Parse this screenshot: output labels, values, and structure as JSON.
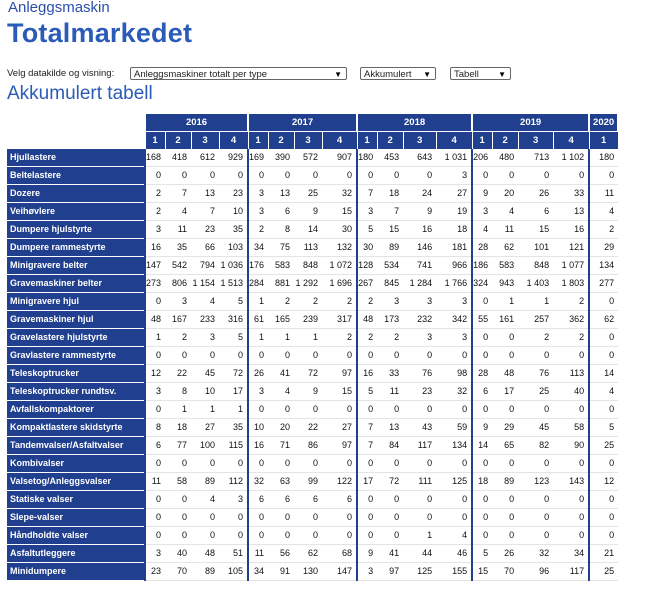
{
  "header": {
    "site_name": "Anleggsmaskin",
    "title": "Totalmarkedet"
  },
  "controls": {
    "label": "Velg datakilde og visning:",
    "source_value": "Anleggsmaskiner totalt per type",
    "mode_value": "Akkumulert",
    "view_value": "Tabell"
  },
  "section_title": "Akkumulert tabell",
  "table": {
    "years": [
      {
        "year": "2016",
        "quarters": [
          "1",
          "2",
          "3",
          "4"
        ]
      },
      {
        "year": "2017",
        "quarters": [
          "1",
          "2",
          "3",
          "4"
        ]
      },
      {
        "year": "2018",
        "quarters": [
          "1",
          "2",
          "3",
          "4"
        ]
      },
      {
        "year": "2019",
        "quarters": [
          "1",
          "2",
          "3",
          "4"
        ]
      },
      {
        "year": "2020",
        "quarters": [
          "1"
        ]
      }
    ],
    "rows": [
      {
        "label": "Hjullastere",
        "values": [
          "168",
          "418",
          "612",
          "929",
          "169",
          "390",
          "572",
          "907",
          "180",
          "453",
          "643",
          "1 031",
          "206",
          "480",
          "713",
          "1 102",
          "180"
        ]
      },
      {
        "label": "Beltelastere",
        "values": [
          "0",
          "0",
          "0",
          "0",
          "0",
          "0",
          "0",
          "0",
          "0",
          "0",
          "0",
          "3",
          "0",
          "0",
          "0",
          "0",
          "0"
        ]
      },
      {
        "label": "Dozere",
        "values": [
          "2",
          "7",
          "13",
          "23",
          "3",
          "13",
          "25",
          "32",
          "7",
          "18",
          "24",
          "27",
          "9",
          "20",
          "26",
          "33",
          "11"
        ]
      },
      {
        "label": "Veihøvlere",
        "values": [
          "2",
          "4",
          "7",
          "10",
          "3",
          "6",
          "9",
          "15",
          "3",
          "7",
          "9",
          "19",
          "3",
          "4",
          "6",
          "13",
          "4"
        ]
      },
      {
        "label": "Dumpere hjulstyrte",
        "values": [
          "3",
          "11",
          "23",
          "35",
          "2",
          "8",
          "14",
          "30",
          "5",
          "15",
          "16",
          "18",
          "4",
          "11",
          "15",
          "16",
          "2"
        ]
      },
      {
        "label": "Dumpere rammestyrte",
        "values": [
          "16",
          "35",
          "66",
          "103",
          "34",
          "75",
          "113",
          "132",
          "30",
          "89",
          "146",
          "181",
          "28",
          "62",
          "101",
          "121",
          "29"
        ]
      },
      {
        "label": "Minigravere belter",
        "values": [
          "147",
          "542",
          "794",
          "1 036",
          "176",
          "583",
          "848",
          "1 072",
          "128",
          "534",
          "741",
          "966",
          "186",
          "583",
          "848",
          "1 077",
          "134"
        ]
      },
      {
        "label": "Gravemaskiner belter",
        "values": [
          "273",
          "806",
          "1 154",
          "1 513",
          "284",
          "881",
          "1 292",
          "1 696",
          "267",
          "845",
          "1 284",
          "1 766",
          "324",
          "943",
          "1 403",
          "1 803",
          "277"
        ]
      },
      {
        "label": "Minigravere hjul",
        "values": [
          "0",
          "3",
          "4",
          "5",
          "1",
          "2",
          "2",
          "2",
          "2",
          "3",
          "3",
          "3",
          "0",
          "1",
          "1",
          "2",
          "0"
        ]
      },
      {
        "label": "Gravemaskiner hjul",
        "values": [
          "48",
          "167",
          "233",
          "316",
          "61",
          "165",
          "239",
          "317",
          "48",
          "173",
          "232",
          "342",
          "55",
          "161",
          "257",
          "362",
          "62"
        ]
      },
      {
        "label": "Gravelastere hjulstyrte",
        "values": [
          "1",
          "2",
          "3",
          "5",
          "1",
          "1",
          "1",
          "2",
          "2",
          "2",
          "3",
          "3",
          "0",
          "0",
          "2",
          "2",
          "0"
        ]
      },
      {
        "label": "Gravlastere rammestyrte",
        "values": [
          "0",
          "0",
          "0",
          "0",
          "0",
          "0",
          "0",
          "0",
          "0",
          "0",
          "0",
          "0",
          "0",
          "0",
          "0",
          "0",
          "0"
        ]
      },
      {
        "label": "Teleskoptrucker",
        "values": [
          "12",
          "22",
          "45",
          "72",
          "26",
          "41",
          "72",
          "97",
          "16",
          "33",
          "76",
          "98",
          "28",
          "48",
          "76",
          "113",
          "14"
        ]
      },
      {
        "label": "Teleskoptrucker rundtsv.",
        "values": [
          "3",
          "8",
          "10",
          "17",
          "3",
          "4",
          "9",
          "15",
          "5",
          "11",
          "23",
          "32",
          "6",
          "17",
          "25",
          "40",
          "4"
        ]
      },
      {
        "label": "Avfallskompaktorer",
        "values": [
          "0",
          "1",
          "1",
          "1",
          "0",
          "0",
          "0",
          "0",
          "0",
          "0",
          "0",
          "0",
          "0",
          "0",
          "0",
          "0",
          "0"
        ]
      },
      {
        "label": "Kompaktlastere skidstyrte",
        "values": [
          "8",
          "18",
          "27",
          "35",
          "10",
          "20",
          "22",
          "27",
          "7",
          "13",
          "43",
          "59",
          "9",
          "29",
          "45",
          "58",
          "5"
        ]
      },
      {
        "label": "Tandemvalser/Asfaltvalser",
        "values": [
          "6",
          "77",
          "100",
          "115",
          "16",
          "71",
          "86",
          "97",
          "7",
          "84",
          "117",
          "134",
          "14",
          "65",
          "82",
          "90",
          "25"
        ]
      },
      {
        "label": "Kombivalser",
        "values": [
          "0",
          "0",
          "0",
          "0",
          "0",
          "0",
          "0",
          "0",
          "0",
          "0",
          "0",
          "0",
          "0",
          "0",
          "0",
          "0",
          "0"
        ]
      },
      {
        "label": "Valsetog/Anleggsvalser",
        "values": [
          "11",
          "58",
          "89",
          "112",
          "32",
          "63",
          "99",
          "122",
          "17",
          "72",
          "111",
          "125",
          "18",
          "89",
          "123",
          "143",
          "12"
        ]
      },
      {
        "label": "Statiske valser",
        "values": [
          "0",
          "0",
          "4",
          "3",
          "6",
          "6",
          "6",
          "6",
          "0",
          "0",
          "0",
          "0",
          "0",
          "0",
          "0",
          "0",
          "0"
        ]
      },
      {
        "label": "Slepe-valser",
        "values": [
          "0",
          "0",
          "0",
          "0",
          "0",
          "0",
          "0",
          "0",
          "0",
          "0",
          "0",
          "0",
          "0",
          "0",
          "0",
          "0",
          "0"
        ]
      },
      {
        "label": "Håndholdte valser",
        "values": [
          "0",
          "0",
          "0",
          "0",
          "0",
          "0",
          "0",
          "0",
          "0",
          "0",
          "1",
          "4",
          "0",
          "0",
          "0",
          "0",
          "0"
        ]
      },
      {
        "label": "Asfaltutleggere",
        "values": [
          "3",
          "40",
          "48",
          "51",
          "11",
          "56",
          "62",
          "68",
          "9",
          "41",
          "44",
          "46",
          "5",
          "26",
          "32",
          "34",
          "21"
        ]
      },
      {
        "label": "Minidumpere",
        "values": [
          "23",
          "70",
          "89",
          "105",
          "34",
          "91",
          "130",
          "147",
          "3",
          "97",
          "125",
          "155",
          "15",
          "70",
          "96",
          "117",
          "25"
        ]
      }
    ]
  }
}
